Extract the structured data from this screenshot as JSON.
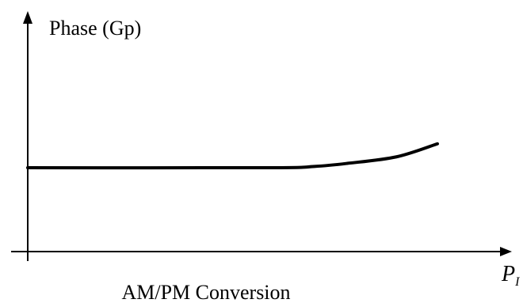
{
  "chart_data": {
    "type": "line",
    "title": "AM/PM Conversion",
    "ylabel": "Phase (Gp)",
    "xlabel": {
      "symbol": "P",
      "subscript": "I"
    },
    "grid": false,
    "legend": "none",
    "series": [
      {
        "color": "#000000",
        "description": "flat then rising",
        "points": [
          [
            0.0,
            0.0
          ],
          [
            0.59,
            0.0
          ],
          [
            0.7,
            0.03
          ],
          [
            0.78,
            0.1
          ],
          [
            0.9,
            0.25
          ],
          [
            1.0,
            0.55
          ]
        ]
      }
    ]
  }
}
